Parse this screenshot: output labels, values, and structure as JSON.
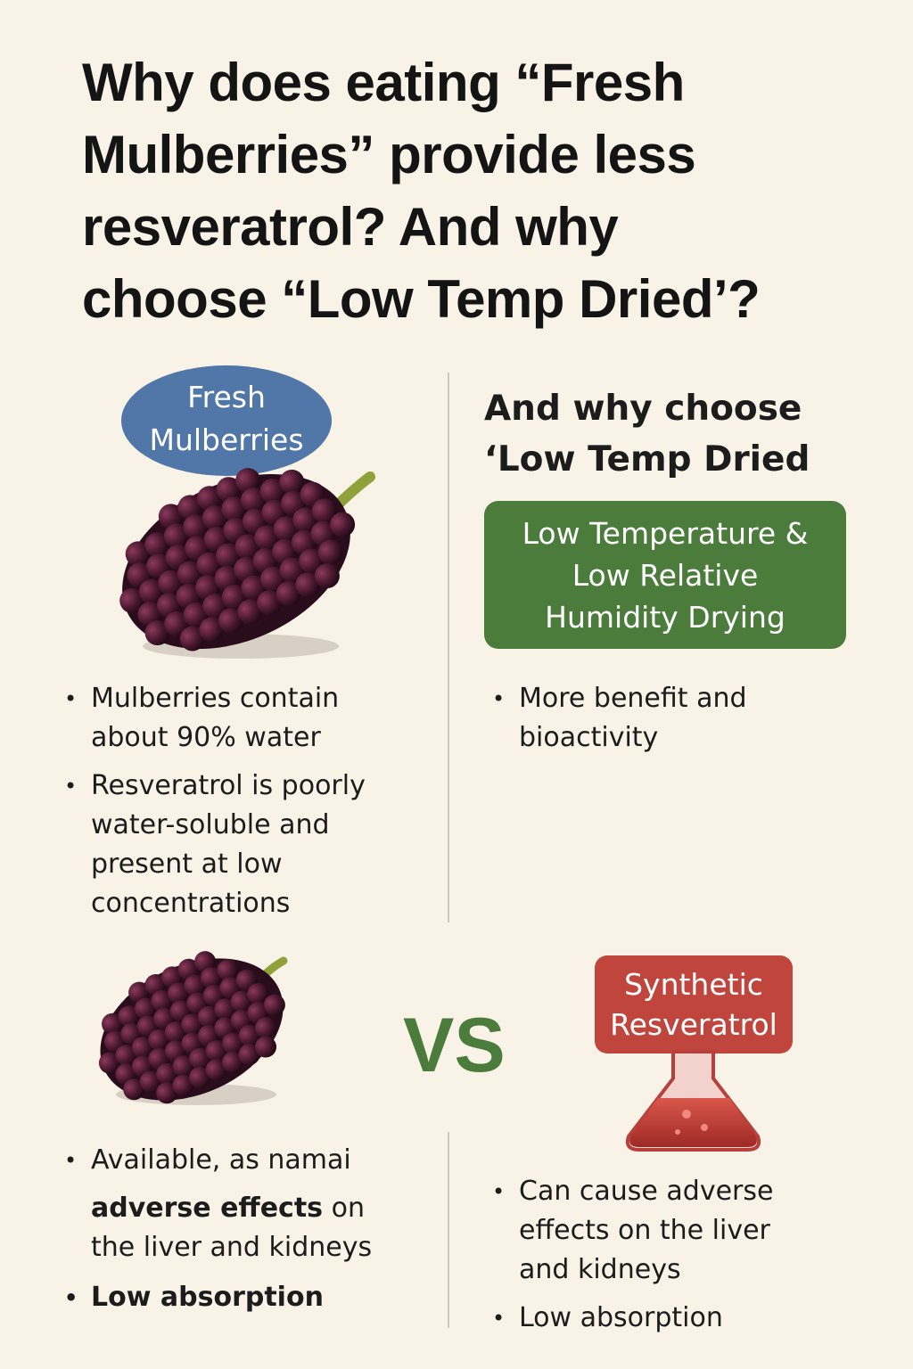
{
  "header": {
    "title_lines": [
      "Why does eating “Fresh",
      "Mulberries” provide less",
      "resveratrol? And why",
      "choose “Low Temp Dried’?"
    ]
  },
  "fresh": {
    "badge_lines": [
      "Fresh",
      "Mulberries"
    ],
    "bullets": [
      "Mulberries contain about 90% water",
      "Resveratrol is poorly water-soluble and present at low concentrations"
    ]
  },
  "dried": {
    "heading_lines": [
      "And why choose",
      "‘Low Temp Dried"
    ],
    "box_lines": [
      "Low Temperature &",
      "Low Relative",
      "Humidity Drying"
    ],
    "bullets": [
      "More benefit and bioactivity"
    ]
  },
  "versus": "VS",
  "natural": {
    "bullet_1": "Available, as namai",
    "line_2_bold": "adverse effects",
    "line_2_rest": " on",
    "line_3": "the liver and kidneys",
    "bullet_4": "Low absorption"
  },
  "synthetic": {
    "badge_lines": [
      "Synthetic",
      "Resveratrol"
    ],
    "bullets": [
      "Can cause adverse effects on the liver and kidneys",
      "Low absorption"
    ]
  }
}
